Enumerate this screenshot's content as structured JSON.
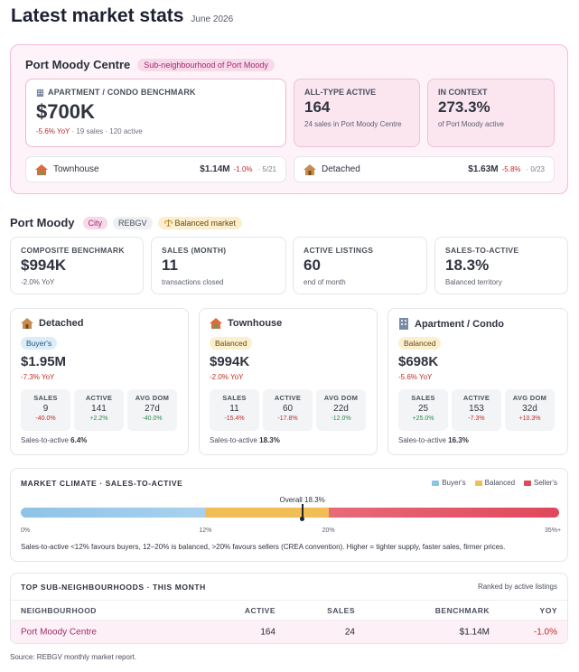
{
  "header": {
    "title": "Latest market stats",
    "date": "June 2026"
  },
  "sub_neighbourhood": {
    "name": "Port Moody Centre",
    "tag": "Sub-neighbourhood of Port Moody",
    "benchmark": {
      "label": "APARTMENT / CONDO BENCHMARK",
      "value": "$700K",
      "yoy": "-5.6% YoY",
      "details": "· 19 sales · 120 active"
    },
    "all_type_active": {
      "label": "ALL-TYPE ACTIVE",
      "value": "164",
      "sub": "24 sales in Port Moody Centre"
    },
    "in_context": {
      "label": "IN CONTEXT",
      "value": "273.3%",
      "sub": "of Port Moody active"
    },
    "townhouse": {
      "label": "Townhouse",
      "value": "$1.14M",
      "yoy": "-1.0%",
      "sales": "· 5/21"
    },
    "detached": {
      "label": "Detached",
      "value": "$1.63M",
      "yoy": "-5.8%",
      "sales": "· 0/23"
    }
  },
  "city": {
    "name": "Port Moody",
    "pills": {
      "city": "City",
      "board": "REBGV",
      "market": "Balanced market"
    },
    "kpis": [
      {
        "label": "COMPOSITE BENCHMARK",
        "value": "$994K",
        "sub": "-2.0% YoY"
      },
      {
        "label": "SALES (MONTH)",
        "value": "11",
        "sub": "transactions closed"
      },
      {
        "label": "ACTIVE LISTINGS",
        "value": "60",
        "sub": "end of month"
      },
      {
        "label": "SALES-TO-ACTIVE",
        "value": "18.3%",
        "sub": "Balanced territory"
      }
    ]
  },
  "property_types": [
    {
      "name": "Detached",
      "market": "Buyer's",
      "value": "$1.95M",
      "yoy": "-7.3% YoY",
      "stats": [
        {
          "label": "SALES",
          "value": "9",
          "change": "-40.0%"
        },
        {
          "label": "ACTIVE",
          "value": "141",
          "change": "+2.2%"
        },
        {
          "label": "AVG DOM",
          "value": "27d",
          "change": "-40.0%"
        }
      ],
      "sta_label": "Sales-to-active",
      "sta_value": "6.4%"
    },
    {
      "name": "Townhouse",
      "market": "Balanced",
      "value": "$994K",
      "yoy": "-2.0% YoY",
      "stats": [
        {
          "label": "SALES",
          "value": "11",
          "change": "-15.4%"
        },
        {
          "label": "ACTIVE",
          "value": "60",
          "change": "-17.8%"
        },
        {
          "label": "AVG DOM",
          "value": "22d",
          "change": "-12.0%"
        }
      ],
      "sta_label": "Sales-to-active",
      "sta_value": "18.3%"
    },
    {
      "name": "Apartment / Condo",
      "market": "Balanced",
      "value": "$698K",
      "yoy": "-5.6% YoY",
      "stats": [
        {
          "label": "SALES",
          "value": "25",
          "change": "+25.0%"
        },
        {
          "label": "ACTIVE",
          "value": "153",
          "change": "-7.3%"
        },
        {
          "label": "AVG DOM",
          "value": "32d",
          "change": "+10.3%"
        }
      ],
      "sta_label": "Sales-to-active",
      "sta_value": "16.3%"
    }
  ],
  "climate": {
    "title": "MARKET CLIMATE · SALES-TO-ACTIVE",
    "legend": [
      "Buyer's",
      "Balanced",
      "Seller's"
    ],
    "colors": {
      "buyers": "#8ec3e6",
      "balanced": "#f1bd55",
      "sellers": "#e0485c"
    },
    "overall_label": "Overall 18.3%",
    "overall_value": 18.3,
    "scale_max": 35,
    "thresholds": [
      12,
      20
    ],
    "ticks": [
      "0%",
      "12%",
      "20%",
      "35%+"
    ],
    "note": "Sales-to-active <12% favours buyers, 12–20% is balanced, >20% favours sellers (CREA convention). Higher = tighter supply, faster sales, firmer prices."
  },
  "table": {
    "title": "TOP SUB-NEIGHBOURHOODS · THIS MONTH",
    "rank_note": "Ranked by active listings",
    "columns": [
      "NEIGHBOURHOOD",
      "ACTIVE",
      "SALES",
      "BENCHMARK",
      "YOY"
    ],
    "rows": [
      {
        "name": "Port Moody Centre",
        "active": "164",
        "sales": "24",
        "benchmark": "$1.14M",
        "yoy": "-1.0%"
      }
    ]
  },
  "source": "Source: REBGV monthly market report."
}
